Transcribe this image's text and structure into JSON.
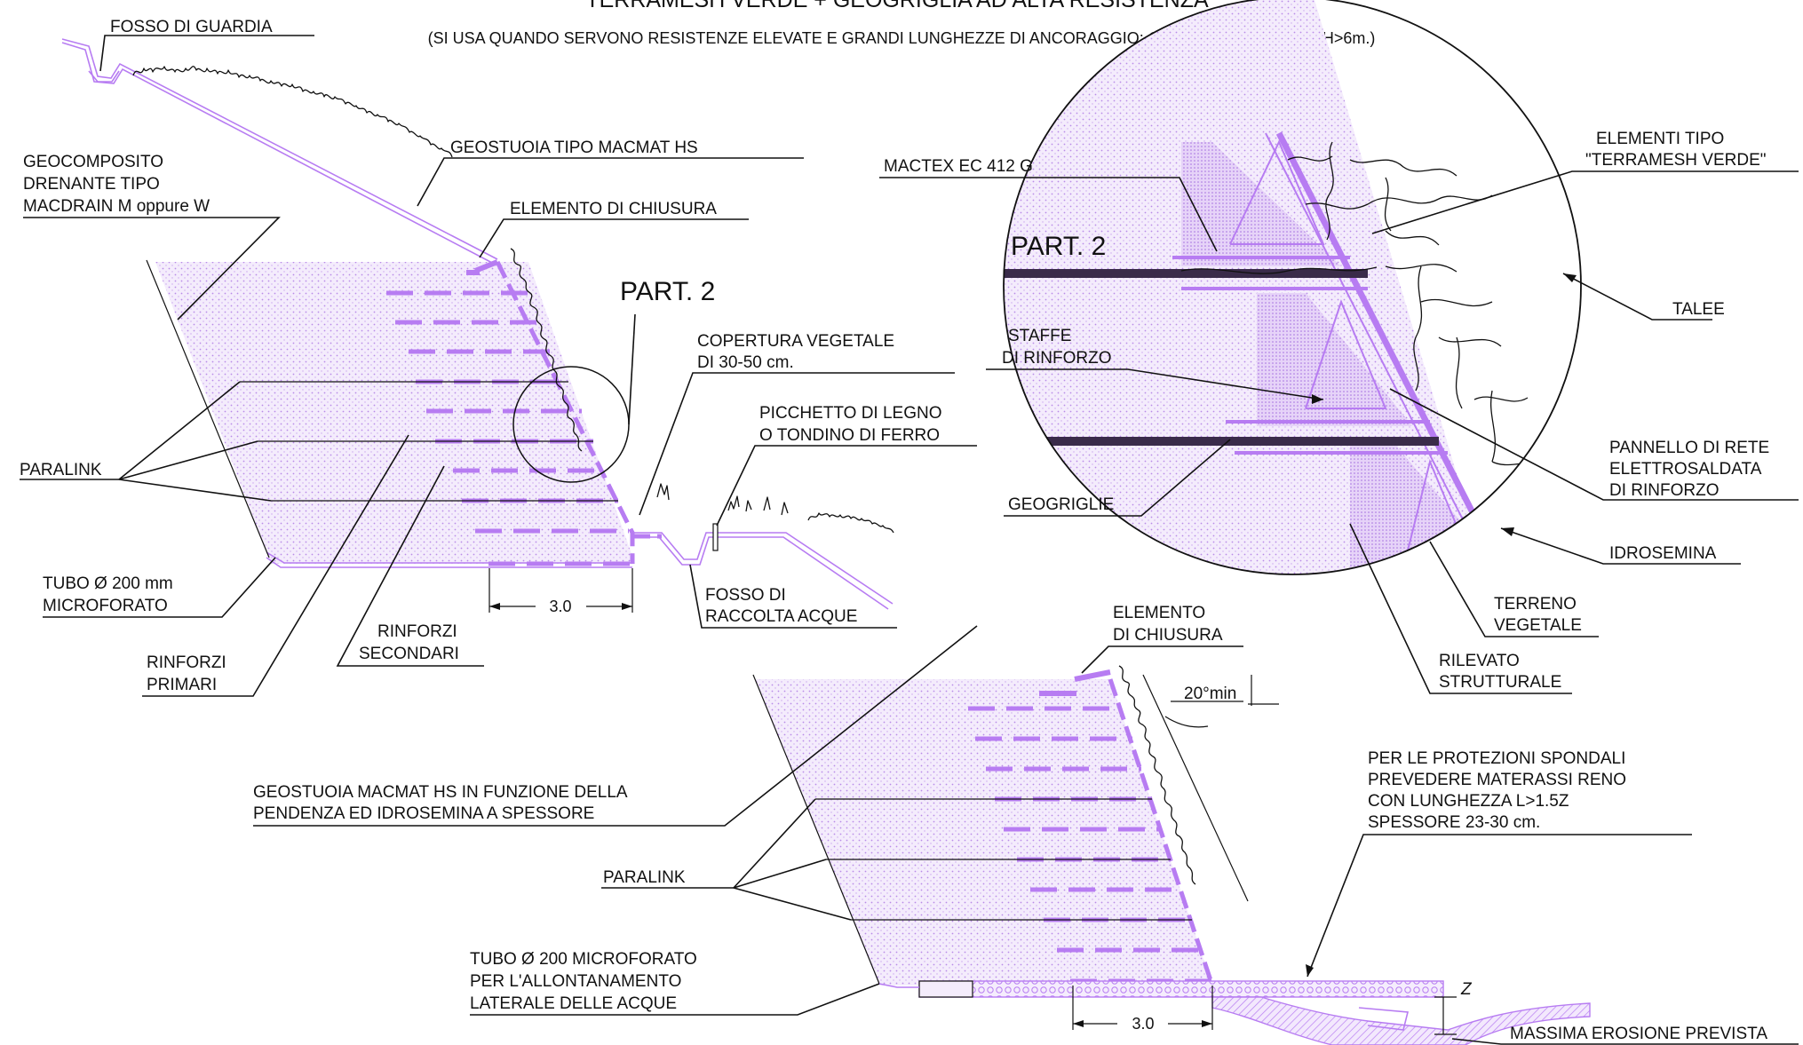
{
  "colors": {
    "accent": "#b77cf2",
    "fill": "#efe4fb",
    "line": "#111111"
  },
  "title": "TERRAMESH VERDE + GEOGRIGLIA AD ALTA RESISTENZA",
  "subtitle": "(SI USA QUANDO SERVONO RESISTENZE ELEVATE E GRANDI LUNGHEZZE DI ANCORAGGIO; GENERALMENTE PER H>6m.)",
  "upper": {
    "fosso_guardia": "FOSSO DI GUARDIA",
    "geostuoia": "GEOSTUOIA TIPO MACMAT HS",
    "geocomposito": [
      "GEOCOMPOSITO",
      "DRENANTE TIPO",
      "MACDRAIN M oppure W"
    ],
    "elemento_chiusura": "ELEMENTO DI CHIUSURA",
    "part2": "PART. 2",
    "copertura": [
      "COPERTURA VEGETALE",
      "DI 30-50 cm."
    ],
    "picchetto": [
      "PICCHETTO DI LEGNO",
      "O TONDINO DI FERRO"
    ],
    "paralink": "PARALINK",
    "tubo": [
      "TUBO Ø 200 mm",
      "MICROFORATO"
    ],
    "fosso_raccolta": [
      "FOSSO DI",
      "RACCOLTA ACQUE"
    ],
    "rinforzi_secondari": [
      "RINFORZI",
      "SECONDARI"
    ],
    "rinforzi_primari": [
      "RINFORZI",
      "PRIMARI"
    ],
    "dim": "3.0"
  },
  "detail": {
    "part2": "PART. 2",
    "mactex": "MACTEX EC 412 G",
    "elementi_tipo": [
      "ELEMENTI TIPO",
      "\"TERRAMESH VERDE\""
    ],
    "talee": "TALEE",
    "staffe": [
      "STAFFE",
      "DI RINFORZO"
    ],
    "pannello": [
      "PANNELLO DI RETE",
      "ELETTROSALDATA",
      "DI RINFORZO"
    ],
    "geogriglie": "GEOGRIGLIE",
    "idrosemina": "IDROSEMINA",
    "terreno": [
      "TERRENO",
      "VEGETALE"
    ],
    "rilevato": [
      "RILEVATO",
      "STRUTTURALE"
    ]
  },
  "lower": {
    "elemento_chiusura": [
      "ELEMENTO",
      "DI CHIUSURA"
    ],
    "angle": "20°min",
    "geostuoia": [
      "GEOSTUOIA MACMAT HS IN FUNZIONE DELLA",
      "PENDENZA ED IDROSEMINA A SPESSORE"
    ],
    "protezioni": [
      "PER LE PROTEZIONI SPONDALI",
      "PREVEDERE MATERASSI RENO",
      "CON LUNGHEZZA L>1.5Z",
      "SPESSORE 23-30 cm."
    ],
    "paralink": "PARALINK",
    "tubo": [
      "TUBO Ø 200 MICROFORATO",
      "PER L'ALLONTANAMENTO",
      "LATERALE DELLE ACQUE"
    ],
    "z": "Z",
    "dim": "3.0",
    "erosione": "MASSIMA EROSIONE PREVISTA"
  }
}
